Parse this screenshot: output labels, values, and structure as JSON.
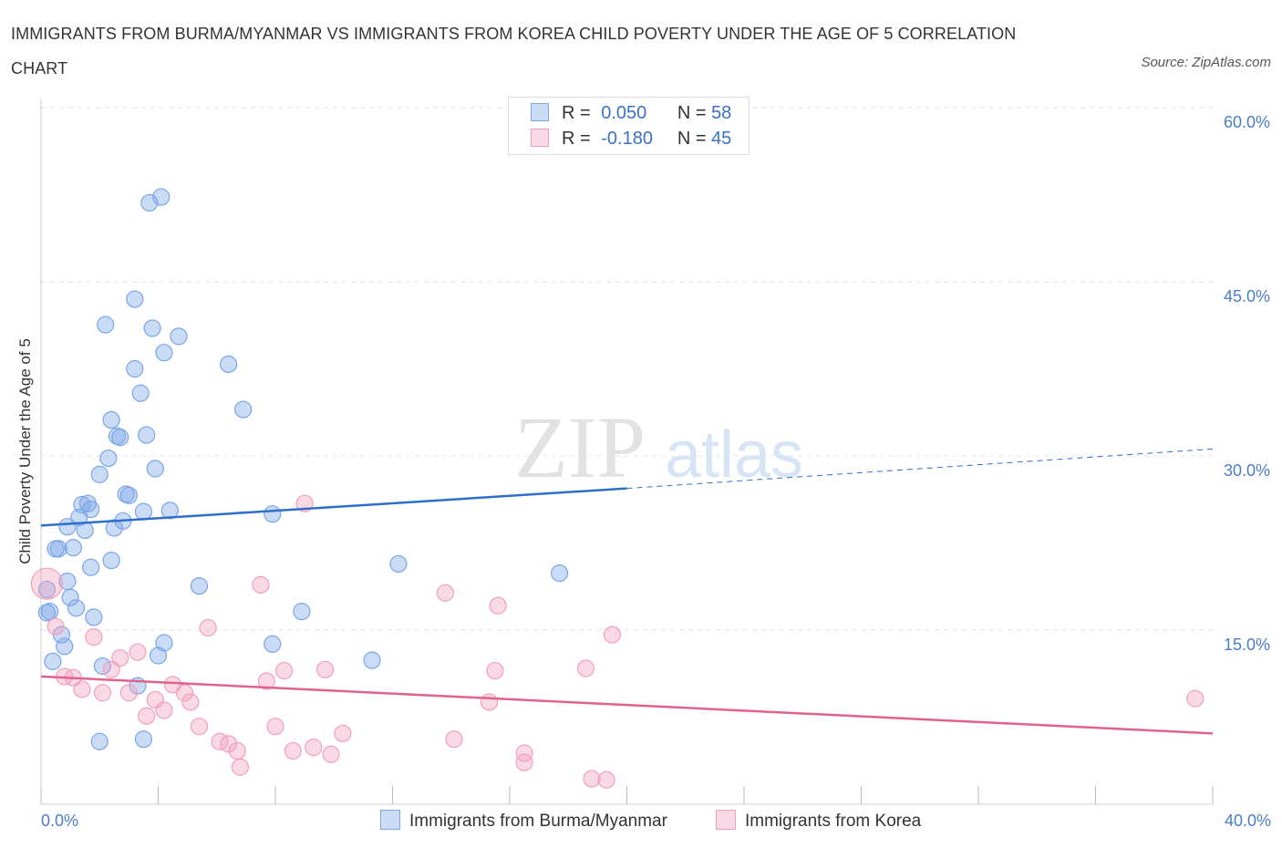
{
  "title": "IMMIGRANTS FROM BURMA/MYANMAR VS IMMIGRANTS FROM KOREA CHILD POVERTY UNDER THE AGE OF 5 CORRELATION CHART",
  "source": "Source: ZipAtlas.com",
  "watermark": {
    "zip": "ZIP",
    "atlas": "atlas"
  },
  "stats": [
    {
      "r_label": "R =",
      "r_value": "0.050",
      "n_label": "N =",
      "n_value": "58",
      "color": "#7aa6e6"
    },
    {
      "r_label": "R =",
      "r_value": "-0.180",
      "n_label": "N =",
      "n_value": "45",
      "color": "#f0a0bc"
    }
  ],
  "chart_data": {
    "type": "scatter",
    "xlabel": "",
    "ylabel": "Child Poverty Under the Age of 5",
    "xlim": [
      0,
      40
    ],
    "ylim": [
      0,
      60
    ],
    "x_tick_labels": [
      "0.0%",
      "40.0%"
    ],
    "y_ticks": [
      15,
      30,
      45,
      60
    ],
    "y_tick_labels": [
      "15.0%",
      "30.0%",
      "45.0%",
      "60.0%"
    ],
    "grid": true,
    "legend_position": "bottom-center",
    "series": [
      {
        "name": "Immigrants from Burma/Myanmar",
        "color": "#7aa6e6",
        "line_color": "#2f6fca",
        "trend": {
          "x_start": 0,
          "y_start": 24.0,
          "x_end": 20,
          "y_end": 27.2,
          "x_dash_end": 40,
          "y_dash_end": 30.6
        },
        "points": [
          [
            0.2,
            18.5
          ],
          [
            0.2,
            16.5
          ],
          [
            0.3,
            16.6
          ],
          [
            0.4,
            12.3
          ],
          [
            0.5,
            22.0
          ],
          [
            0.6,
            22.0
          ],
          [
            0.7,
            14.6
          ],
          [
            0.8,
            13.6
          ],
          [
            0.9,
            23.9
          ],
          [
            0.9,
            19.2
          ],
          [
            1.0,
            17.8
          ],
          [
            1.1,
            22.1
          ],
          [
            1.2,
            16.9
          ],
          [
            1.3,
            24.7
          ],
          [
            1.4,
            25.8
          ],
          [
            1.5,
            23.6
          ],
          [
            1.6,
            25.9
          ],
          [
            1.7,
            25.4
          ],
          [
            1.7,
            20.4
          ],
          [
            1.8,
            16.1
          ],
          [
            2.0,
            28.4
          ],
          [
            2.1,
            11.9
          ],
          [
            2.0,
            5.4
          ],
          [
            2.3,
            29.8
          ],
          [
            2.4,
            33.1
          ],
          [
            2.4,
            21.0
          ],
          [
            2.5,
            23.8
          ],
          [
            2.6,
            31.7
          ],
          [
            2.7,
            31.6
          ],
          [
            2.8,
            24.4
          ],
          [
            2.9,
            26.7
          ],
          [
            3.0,
            26.6
          ],
          [
            3.2,
            43.5
          ],
          [
            3.2,
            37.5
          ],
          [
            3.3,
            10.2
          ],
          [
            3.4,
            35.4
          ],
          [
            3.5,
            5.6
          ],
          [
            3.5,
            25.2
          ],
          [
            3.6,
            31.8
          ],
          [
            3.7,
            51.8
          ],
          [
            3.8,
            41.0
          ],
          [
            3.9,
            28.9
          ],
          [
            4.0,
            12.8
          ],
          [
            4.1,
            52.3
          ],
          [
            4.2,
            13.9
          ],
          [
            4.2,
            38.9
          ],
          [
            4.4,
            25.3
          ],
          [
            4.7,
            40.3
          ],
          [
            2.2,
            41.3
          ],
          [
            5.4,
            18.8
          ],
          [
            6.4,
            37.9
          ],
          [
            6.9,
            34.0
          ],
          [
            7.9,
            13.8
          ],
          [
            7.9,
            25.0
          ],
          [
            8.9,
            16.6
          ],
          [
            11.3,
            12.4
          ],
          [
            12.2,
            20.7
          ],
          [
            17.7,
            19.9
          ]
        ]
      },
      {
        "name": "Immigrants from Korea",
        "color": "#f0a0bc",
        "line_color": "#e0628f",
        "trend": {
          "x_start": 0,
          "y_start": 11.0,
          "x_end": 40,
          "y_end": 6.1
        },
        "points": [
          [
            0.2,
            19.0
          ],
          [
            0.5,
            15.3
          ],
          [
            0.8,
            11.0
          ],
          [
            1.1,
            10.9
          ],
          [
            1.4,
            9.9
          ],
          [
            1.8,
            14.4
          ],
          [
            2.1,
            9.6
          ],
          [
            2.4,
            11.6
          ],
          [
            2.7,
            12.6
          ],
          [
            3.0,
            9.6
          ],
          [
            3.3,
            13.1
          ],
          [
            3.6,
            7.6
          ],
          [
            3.9,
            9.0
          ],
          [
            4.2,
            8.1
          ],
          [
            4.5,
            10.3
          ],
          [
            4.9,
            9.6
          ],
          [
            5.1,
            8.8
          ],
          [
            5.4,
            6.7
          ],
          [
            5.7,
            15.2
          ],
          [
            6.1,
            5.4
          ],
          [
            6.4,
            5.2
          ],
          [
            6.7,
            4.6
          ],
          [
            6.8,
            3.2
          ],
          [
            7.5,
            18.9
          ],
          [
            7.7,
            10.6
          ],
          [
            8.0,
            6.7
          ],
          [
            8.3,
            11.5
          ],
          [
            8.6,
            4.6
          ],
          [
            9.0,
            25.9
          ],
          [
            9.3,
            4.9
          ],
          [
            9.7,
            11.6
          ],
          [
            9.9,
            4.3
          ],
          [
            10.3,
            6.1
          ],
          [
            13.8,
            18.2
          ],
          [
            14.1,
            5.6
          ],
          [
            15.3,
            8.8
          ],
          [
            15.5,
            11.5
          ],
          [
            15.6,
            17.1
          ],
          [
            16.5,
            4.4
          ],
          [
            16.5,
            3.6
          ],
          [
            18.6,
            11.7
          ],
          [
            18.8,
            2.2
          ],
          [
            19.3,
            2.1
          ],
          [
            19.5,
            14.6
          ],
          [
            39.4,
            9.1
          ]
        ]
      }
    ]
  }
}
